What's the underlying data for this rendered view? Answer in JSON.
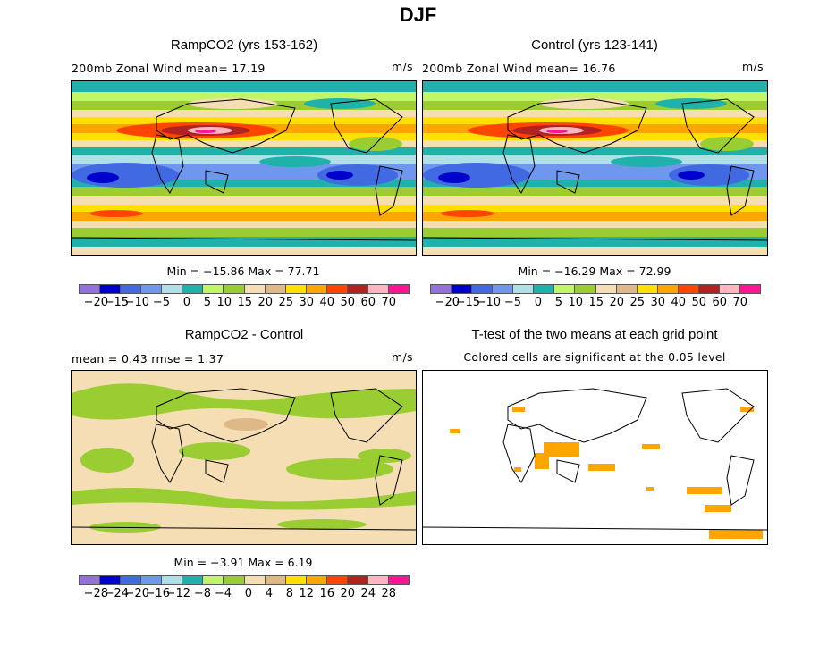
{
  "title": "DJF",
  "panels": {
    "ramp": {
      "title": "RampCO2 (yrs 153-162)",
      "subtitle": "200mb Zonal Wind  mean=  17.19",
      "units": "m/s",
      "min": "Min = −15.86 Max =  77.71"
    },
    "control": {
      "title": "Control (yrs 123-141)",
      "subtitle": "200mb Zonal Wind  mean=  16.76",
      "units": "m/s",
      "min": "Min = −16.29 Max =  72.99"
    },
    "diff": {
      "title": "RampCO2 - Control",
      "subtitle": "mean =   0.43    rmse =   1.37",
      "units": "m/s",
      "min": "Min =  −3.91 Max =   6.19"
    },
    "ttest": {
      "title": "T-test of the two means at each grid point",
      "subtitle": "Colored cells are significant at the 0.05 level"
    }
  },
  "colorbar": {
    "colors": [
      "#9370DB",
      "#0000CD",
      "#4169E1",
      "#6F97ED",
      "#B0E0E6",
      "#20B2AA",
      "#C1F566",
      "#9ACD32",
      "#F5DEB3",
      "#DEB887",
      "#FFE000",
      "#FFA500",
      "#FF4500",
      "#B22222",
      "#FFB6C1",
      "#FF1493"
    ],
    "wind_labels": [
      "−20",
      "−15",
      "−10",
      "−5",
      "0",
      "5",
      "10",
      "15",
      "20",
      "25",
      "30",
      "40",
      "50",
      "60",
      "70"
    ],
    "diff_labels": [
      "−28",
      "−24",
      "−20",
      "−16",
      "−12",
      "−8",
      "−4",
      "0",
      "4",
      "8",
      "12",
      "16",
      "20",
      "24",
      "28"
    ]
  }
}
